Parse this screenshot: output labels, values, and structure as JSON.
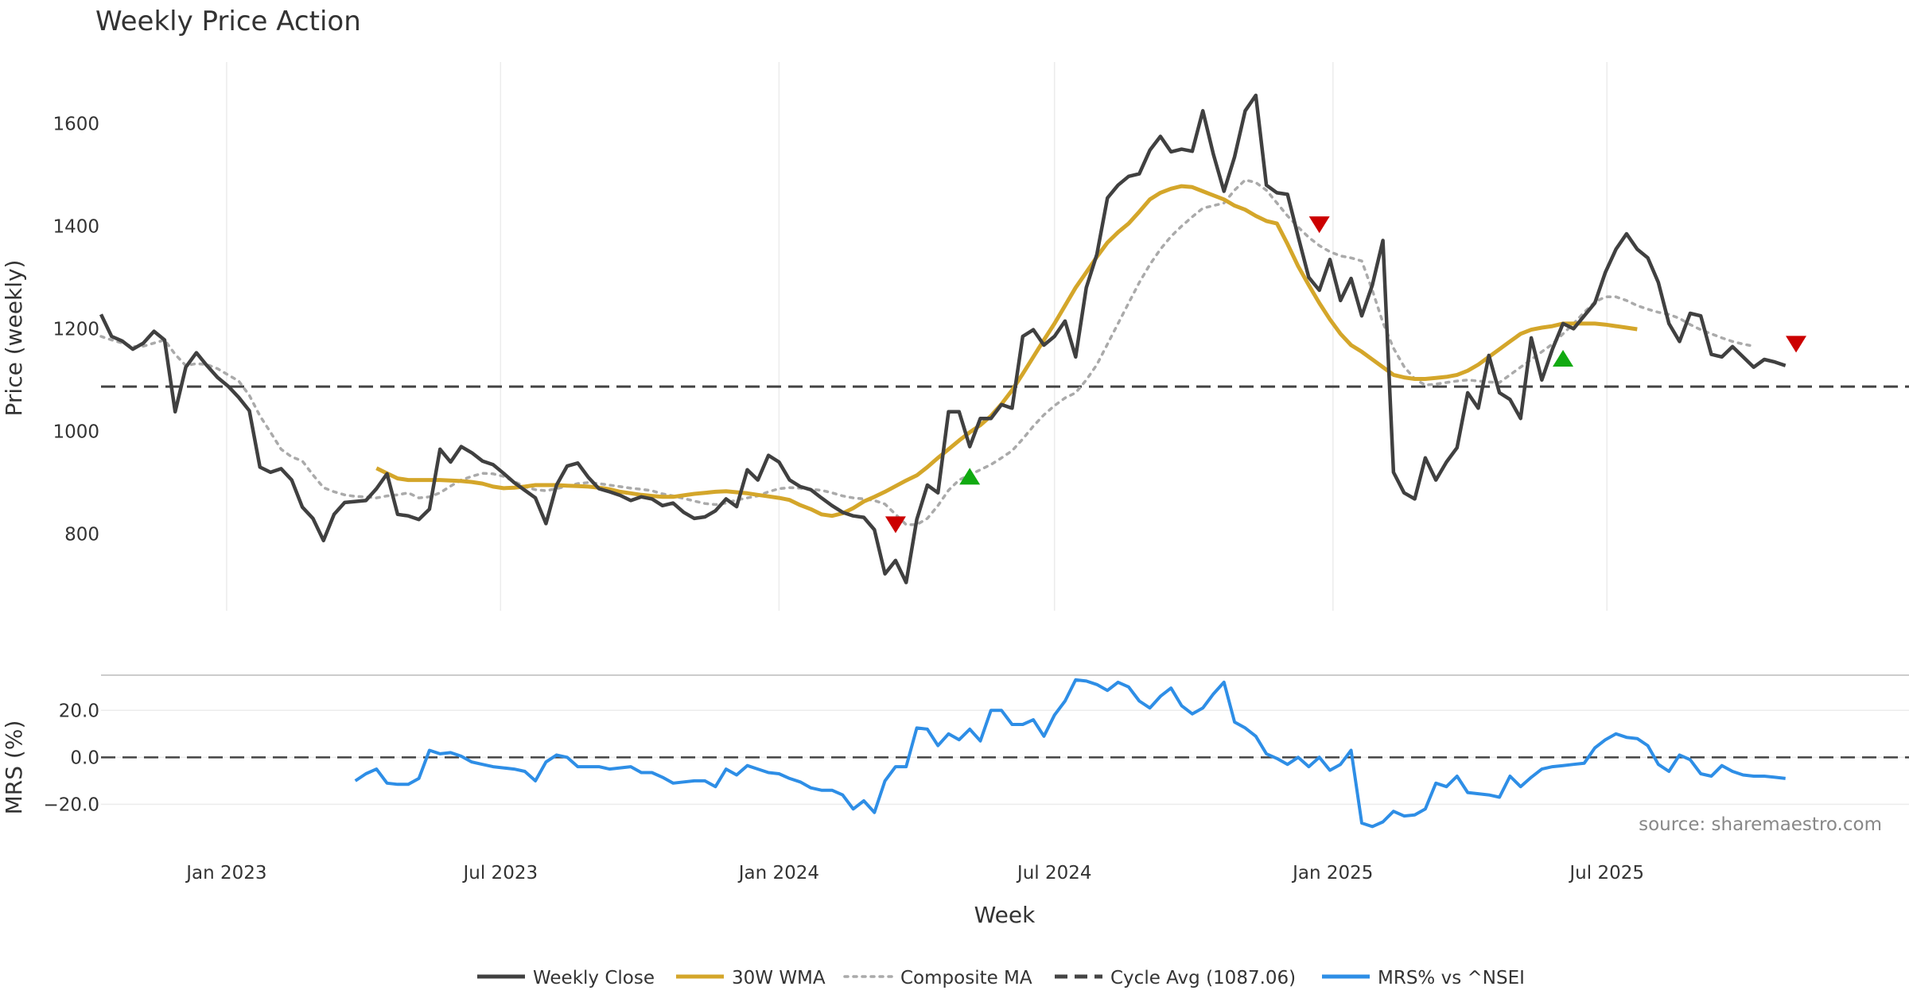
{
  "chart_data": {
    "type": "line",
    "title": "Weekly Price Action",
    "xlabel": "Week",
    "x_ticks": [
      "Jan 2023",
      "Jul 2023",
      "Jan 2024",
      "Jul 2024",
      "Jan 2025",
      "Jul 2025"
    ],
    "x_range": [
      "2022-10-10",
      "2025-11-24"
    ],
    "source": "source: sharemaestro.com",
    "price_panel": {
      "ylabel": "Price (weekly)",
      "ylim": [
        650,
        1720
      ],
      "y_ticks": [
        800,
        1000,
        1200,
        1400,
        1600
      ],
      "cycle_avg": 1087.06,
      "weekly_close": {
        "name": "Weekly Close",
        "color": "#404040",
        "start": "2022-10-10",
        "step_days": 7,
        "values": [
          1228,
          1185,
          1176,
          1160,
          1172,
          1195,
          1178,
          1038,
          1125,
          1153,
          1128,
          1105,
          1088,
          1066,
          1040,
          930,
          920,
          927,
          905,
          852,
          830,
          787,
          838,
          861,
          863,
          865,
          888,
          917,
          838,
          835,
          828,
          848,
          965,
          940,
          970,
          958,
          942,
          935,
          918,
          900,
          885,
          870,
          820,
          895,
          932,
          938,
          910,
          888,
          882,
          875,
          865,
          872,
          868,
          855,
          860,
          842,
          830,
          833,
          845,
          868,
          853,
          925,
          905,
          953,
          940,
          905,
          892,
          886,
          870,
          855,
          842,
          835,
          832,
          808,
          722,
          748,
          705,
          828,
          895,
          880,
          1038,
          1038,
          970,
          1025,
          1025,
          1052,
          1045,
          1185,
          1198,
          1168,
          1185,
          1215,
          1145,
          1280,
          1345,
          1455,
          1480,
          1497,
          1502,
          1548,
          1575,
          1545,
          1550,
          1546,
          1625,
          1540,
          1468,
          1535,
          1625,
          1655,
          1480,
          1465,
          1462,
          1380,
          1300,
          1275,
          1335,
          1255,
          1298,
          1225,
          1285,
          1372,
          920,
          880,
          868,
          948,
          905,
          940,
          968,
          1075,
          1045,
          1148,
          1075,
          1062,
          1025,
          1182,
          1100,
          1160,
          1210,
          1200,
          1225,
          1250,
          1310,
          1355,
          1385,
          1355,
          1338,
          1290,
          1210,
          1175,
          1230,
          1225,
          1150,
          1145,
          1165,
          1145,
          1125,
          1140,
          1135,
          1128
        ]
      },
      "wma_30w": {
        "name": "30W WMA",
        "color": "#d4a62a",
        "start": "2023-04-10",
        "step_days": 7,
        "values": [
          928,
          918,
          908,
          905,
          905,
          905,
          905,
          904,
          903,
          901,
          898,
          892,
          889,
          890,
          892,
          895,
          895,
          895,
          894,
          893,
          892,
          890,
          887,
          882,
          879,
          876,
          874,
          872,
          872,
          875,
          878,
          880,
          882,
          883,
          881,
          879,
          876,
          873,
          870,
          866,
          856,
          848,
          838,
          835,
          840,
          850,
          863,
          872,
          882,
          893,
          904,
          914,
          930,
          948,
          965,
          982,
          998,
          1012,
          1030,
          1053,
          1080,
          1112,
          1145,
          1178,
          1210,
          1245,
          1280,
          1310,
          1340,
          1368,
          1388,
          1405,
          1428,
          1452,
          1465,
          1473,
          1478,
          1476,
          1468,
          1460,
          1452,
          1440,
          1432,
          1420,
          1410,
          1405,
          1365,
          1322,
          1285,
          1250,
          1218,
          1190,
          1168,
          1155,
          1140,
          1125,
          1110,
          1105,
          1102,
          1102,
          1104,
          1106,
          1110,
          1118,
          1130,
          1145,
          1160,
          1175,
          1190,
          1198,
          1202,
          1205,
          1210,
          1210,
          1210,
          1210,
          1208,
          1205,
          1202,
          1199
        ]
      },
      "composite_ma": {
        "name": "Composite MA",
        "color": "#aaaaaa",
        "start": "2022-10-10",
        "step_days": 7,
        "values": [
          1185,
          1178,
          1172,
          1165,
          1166,
          1172,
          1178,
          1150,
          1128,
          1132,
          1130,
          1122,
          1110,
          1098,
          1070,
          1030,
          998,
          965,
          950,
          942,
          915,
          890,
          882,
          876,
          873,
          872,
          870,
          874,
          876,
          880,
          870,
          872,
          880,
          893,
          905,
          912,
          918,
          917,
          912,
          902,
          892,
          886,
          884,
          888,
          893,
          898,
          900,
          898,
          895,
          892,
          889,
          887,
          884,
          878,
          874,
          869,
          864,
          859,
          857,
          860,
          866,
          870,
          874,
          882,
          888,
          890,
          889,
          887,
          885,
          880,
          874,
          870,
          868,
          865,
          858,
          838,
          818,
          818,
          830,
          855,
          885,
          905,
          915,
          925,
          935,
          948,
          962,
          985,
          1010,
          1032,
          1050,
          1065,
          1075,
          1100,
          1130,
          1170,
          1210,
          1250,
          1290,
          1325,
          1355,
          1380,
          1400,
          1418,
          1435,
          1440,
          1445,
          1470,
          1490,
          1485,
          1470,
          1445,
          1420,
          1398,
          1378,
          1362,
          1350,
          1342,
          1338,
          1332,
          1275,
          1212,
          1162,
          1126,
          1102,
          1090,
          1092,
          1095,
          1098,
          1100,
          1098,
          1096,
          1095,
          1110,
          1125,
          1140,
          1155,
          1170,
          1190,
          1210,
          1232,
          1252,
          1262,
          1262,
          1255,
          1245,
          1238,
          1232,
          1228,
          1220,
          1208,
          1198,
          1190,
          1182,
          1175,
          1170,
          1166
        ]
      },
      "signals": [
        {
          "type": "sell",
          "date": "2024-03-18",
          "price": 820,
          "color": "#cc0000"
        },
        {
          "type": "buy",
          "date": "2024-05-06",
          "price": 910,
          "color": "#11aa11"
        },
        {
          "type": "sell",
          "date": "2024-12-23",
          "price": 1405,
          "color": "#cc0000"
        },
        {
          "type": "buy",
          "date": "2025-06-02",
          "price": 1140,
          "color": "#11aa11"
        },
        {
          "type": "sell",
          "date": "2025-11-03",
          "price": 1172,
          "color": "#cc0000"
        }
      ]
    },
    "mrs_panel": {
      "ylabel": "MRS (%)",
      "ylim": [
        -28,
        35
      ],
      "y_ticks": [
        "20.0",
        "0.0",
        "−20.0"
      ],
      "y_tick_values": [
        20,
        0,
        -20
      ],
      "zero_line": 0,
      "mrs": {
        "name": "MRS% vs ^NSEI",
        "color": "#2e8ee6",
        "start": "2023-03-27",
        "step_days": 7,
        "values": [
          -10,
          -7,
          -5,
          -11,
          -11.5,
          -11.5,
          -9,
          3,
          1.5,
          2,
          0.5,
          -2,
          -3,
          -4,
          -4.5,
          -5,
          -6,
          -10,
          -2,
          1,
          0,
          -4,
          -4,
          -4,
          -5,
          -4.5,
          -4,
          -6.5,
          -6.5,
          -8.5,
          -11,
          -10.5,
          -10,
          -10,
          -12.5,
          -5,
          -7.5,
          -3.5,
          -5,
          -6.5,
          -7,
          -9,
          -10.5,
          -13,
          -14,
          -14,
          -16,
          -22,
          -18.5,
          -23.5,
          -10,
          -4,
          -4,
          12.5,
          12,
          5,
          10,
          7.5,
          12,
          7,
          20,
          20,
          14,
          14,
          16,
          9,
          18,
          24,
          33,
          32.5,
          31,
          28.5,
          32,
          30,
          24,
          21,
          26,
          29.5,
          22,
          18.5,
          21,
          27,
          32,
          15,
          12.5,
          9,
          1.5,
          -0.5,
          -3,
          0,
          -4,
          0,
          -5.5,
          -3,
          3,
          -28,
          -29.5,
          -27.5,
          -23,
          -25,
          -24.5,
          -22,
          -11,
          -12.5,
          -8,
          -15,
          -15.5,
          -16,
          -17,
          -8,
          -12.5,
          -8.5,
          -5,
          -4,
          -3.5,
          -3,
          -2.5,
          4,
          7.5,
          10,
          8.5,
          8,
          5,
          -3,
          -6,
          1,
          -1,
          -7,
          -8,
          -3.5,
          -6,
          -7.5,
          -8,
          -8,
          -8.5,
          -9
        ]
      }
    },
    "legend": [
      {
        "label": "Weekly Close",
        "color": "#404040",
        "style": "solid"
      },
      {
        "label": "30W WMA",
        "color": "#d4a62a",
        "style": "solid"
      },
      {
        "label": "Composite MA",
        "color": "#aaaaaa",
        "style": "dotted"
      },
      {
        "label": "Cycle Avg (1087.06)",
        "color": "#444444",
        "style": "dashed"
      },
      {
        "label": "MRS% vs ^NSEI",
        "color": "#2e8ee6",
        "style": "solid"
      }
    ]
  }
}
